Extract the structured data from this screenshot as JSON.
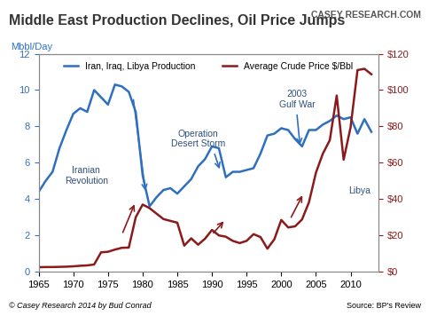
{
  "chart_data": {
    "type": "line",
    "title": "Middle East Production Declines, Oil Price Jumps",
    "logo": "CASEY RESEARCH.COM",
    "y_label": "Mbbl/Day",
    "copyright": "© Casey Research 2014 by Bud Conrad",
    "source": "Source: BP's Review",
    "annotations": [
      "Iranian Revolution",
      "Operation Desert Storm",
      "2003 Gulf War",
      "Libya"
    ],
    "legend": "upper center",
    "x": [
      1965,
      1966,
      1967,
      1968,
      1969,
      1970,
      1971,
      1972,
      1973,
      1974,
      1975,
      1976,
      1977,
      1978,
      1979,
      1980,
      1981,
      1982,
      1983,
      1984,
      1985,
      1986,
      1987,
      1988,
      1989,
      1990,
      1991,
      1992,
      1993,
      1994,
      1995,
      1996,
      1997,
      1998,
      1999,
      2000,
      2001,
      2002,
      2003,
      2004,
      2005,
      2006,
      2007,
      2008,
      2009,
      2010,
      2011,
      2012,
      2013
    ],
    "xlim": [
      1965,
      2014
    ],
    "xticks": [
      1965,
      1970,
      1975,
      1980,
      1985,
      1990,
      1995,
      2000,
      2005,
      2010
    ],
    "ylim": [
      0,
      12
    ],
    "yticks": [
      0,
      2,
      4,
      6,
      8,
      10,
      12
    ],
    "y2lim": [
      0,
      120
    ],
    "y2ticks": [
      {
        "value": 0,
        "label": "$0"
      },
      {
        "value": 20,
        "label": "$20"
      },
      {
        "value": 40,
        "label": "$40"
      },
      {
        "value": 60,
        "label": "$60"
      },
      {
        "value": 80,
        "label": "$80"
      },
      {
        "value": 100,
        "label": "$100"
      },
      {
        "value": 120,
        "label": "$120"
      }
    ],
    "series": [
      {
        "name": "Iran, Iraq, Libya Production",
        "color": "#2f6fc0",
        "values": [
          4.4,
          5.0,
          5.5,
          6.8,
          7.8,
          8.7,
          9.0,
          8.8,
          10.0,
          9.6,
          9.2,
          10.3,
          10.2,
          9.9,
          8.8,
          5.3,
          3.6,
          4.1,
          4.5,
          4.6,
          4.3,
          4.7,
          5.1,
          5.8,
          6.2,
          6.9,
          6.8,
          5.2,
          5.5,
          5.5,
          5.6,
          5.7,
          6.5,
          7.5,
          7.6,
          7.9,
          7.8,
          7.3,
          6.9,
          7.8,
          7.8,
          8.1,
          8.3,
          8.6,
          8.4,
          8.5,
          7.6,
          8.4,
          7.7
        ]
      },
      {
        "name": "Average Crude Price $/Bbl",
        "color": "#8b1a1a",
        "axis": "y2",
        "values": [
          2.5,
          2.6,
          2.6,
          2.7,
          2.8,
          3.0,
          3.3,
          3.5,
          4.0,
          10.7,
          11.0,
          12.2,
          13.2,
          13.3,
          30,
          37,
          35,
          32,
          29,
          28,
          27,
          14.4,
          18.4,
          14.9,
          18.2,
          23,
          20,
          19.3,
          17,
          15.8,
          17,
          20.7,
          19.1,
          12.7,
          17.9,
          28.5,
          24.4,
          25,
          28.8,
          38.3,
          54.5,
          65,
          72.4,
          97,
          61.7,
          79.5,
          111,
          111.7,
          108.7
        ]
      }
    ]
  }
}
